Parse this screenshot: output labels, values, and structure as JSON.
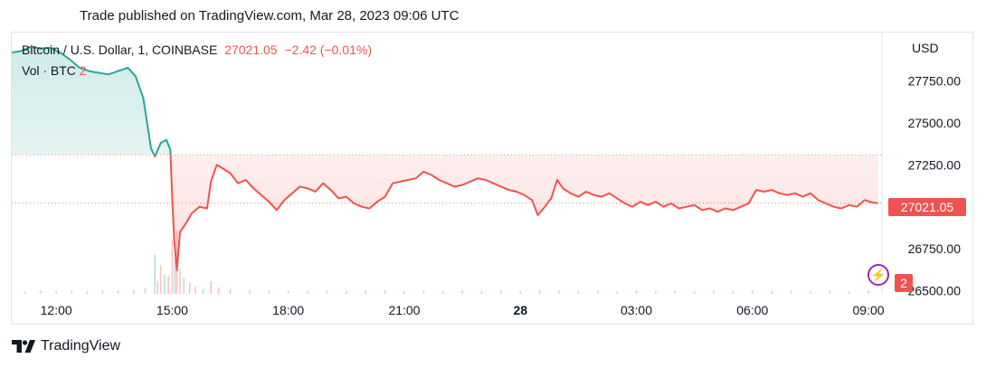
{
  "header": {
    "published": "Trade published on TradingView.com, Mar 28, 2023 09:06 UTC"
  },
  "legend": {
    "symbol": "Bitcoin / U.S. Dollar, 1, COINBASE",
    "last": "27021.05",
    "change": "−2.42 (−0.01%)",
    "volume_label": "Vol · BTC",
    "volume_value": "2"
  },
  "axis": {
    "currency": "USD",
    "price_badge": "27021.05",
    "volume_badge": "2"
  },
  "brand": {
    "name": "TradingView",
    "logo_icon": "tradingview-logo-icon"
  },
  "colors": {
    "up": "#26a69a",
    "down": "#ef5350",
    "marker": "#9c27b0"
  },
  "chart_data": {
    "type": "line",
    "title": "Bitcoin / U.S. Dollar, 1, COINBASE",
    "y_ticks": [
      "27750.00",
      "27500.00",
      "27250.00",
      "27000.00",
      "26750.00",
      "26500.00"
    ],
    "y_tick_values": [
      27750,
      27500,
      27250,
      27000,
      26750,
      26500
    ],
    "ylim": [
      26480,
      28040
    ],
    "x_ticks": [
      {
        "label": "12:00",
        "t": 3,
        "bold": false
      },
      {
        "label": "15:00",
        "t": 6,
        "bold": false
      },
      {
        "label": "18:00",
        "t": 9,
        "bold": false
      },
      {
        "label": "21:00",
        "t": 12,
        "bold": false
      },
      {
        "label": "28",
        "t": 15,
        "bold": true
      },
      {
        "label": "03:00",
        "t": 18,
        "bold": false
      },
      {
        "label": "06:00",
        "t": 21,
        "bold": false
      },
      {
        "label": "09:00",
        "t": 24,
        "bold": false
      }
    ],
    "xlim": [
      1.85,
      24.35
    ],
    "reference_price": 27310,
    "last_price": 27021.05,
    "series": [
      {
        "points": [
          [
            1.85,
            27920
          ],
          [
            2.1,
            27930
          ],
          [
            2.35,
            27955
          ],
          [
            2.6,
            27945
          ],
          [
            2.85,
            27950
          ],
          [
            3.1,
            27920
          ],
          [
            3.35,
            27880
          ],
          [
            3.6,
            27830
          ],
          [
            3.85,
            27810
          ],
          [
            4.1,
            27800
          ],
          [
            4.35,
            27790
          ],
          [
            4.6,
            27810
          ],
          [
            4.85,
            27830
          ],
          [
            5.05,
            27780
          ],
          [
            5.25,
            27650
          ],
          [
            5.35,
            27500
          ],
          [
            5.45,
            27350
          ],
          [
            5.55,
            27300
          ],
          [
            5.7,
            27380
          ],
          [
            5.85,
            27400
          ],
          [
            5.95,
            27340
          ],
          [
            6.0,
            27050
          ],
          [
            6.05,
            26800
          ],
          [
            6.12,
            26620
          ],
          [
            6.2,
            26850
          ],
          [
            6.35,
            26900
          ],
          [
            6.5,
            26960
          ],
          [
            6.7,
            27000
          ],
          [
            6.9,
            26990
          ],
          [
            7.0,
            27150
          ],
          [
            7.15,
            27250
          ],
          [
            7.3,
            27230
          ],
          [
            7.5,
            27200
          ],
          [
            7.7,
            27140
          ],
          [
            7.9,
            27160
          ],
          [
            8.1,
            27110
          ],
          [
            8.3,
            27070
          ],
          [
            8.5,
            27030
          ],
          [
            8.7,
            26980
          ],
          [
            8.9,
            27040
          ],
          [
            9.1,
            27080
          ],
          [
            9.3,
            27120
          ],
          [
            9.5,
            27110
          ],
          [
            9.7,
            27090
          ],
          [
            9.9,
            27140
          ],
          [
            10.1,
            27100
          ],
          [
            10.3,
            27050
          ],
          [
            10.5,
            27060
          ],
          [
            10.7,
            27020
          ],
          [
            10.9,
            27000
          ],
          [
            11.1,
            26990
          ],
          [
            11.3,
            27030
          ],
          [
            11.5,
            27060
          ],
          [
            11.7,
            27140
          ],
          [
            11.9,
            27150
          ],
          [
            12.1,
            27160
          ],
          [
            12.3,
            27170
          ],
          [
            12.5,
            27210
          ],
          [
            12.7,
            27190
          ],
          [
            12.9,
            27160
          ],
          [
            13.1,
            27140
          ],
          [
            13.3,
            27120
          ],
          [
            13.5,
            27130
          ],
          [
            13.7,
            27150
          ],
          [
            13.9,
            27170
          ],
          [
            14.1,
            27160
          ],
          [
            14.3,
            27140
          ],
          [
            14.5,
            27120
          ],
          [
            14.7,
            27100
          ],
          [
            14.9,
            27090
          ],
          [
            15.1,
            27070
          ],
          [
            15.3,
            27040
          ],
          [
            15.45,
            26950
          ],
          [
            15.6,
            26990
          ],
          [
            15.8,
            27050
          ],
          [
            15.95,
            27160
          ],
          [
            16.1,
            27110
          ],
          [
            16.3,
            27080
          ],
          [
            16.5,
            27060
          ],
          [
            16.7,
            27090
          ],
          [
            16.9,
            27070
          ],
          [
            17.1,
            27060
          ],
          [
            17.3,
            27080
          ],
          [
            17.5,
            27050
          ],
          [
            17.7,
            27020
          ],
          [
            17.9,
            27000
          ],
          [
            18.1,
            27030
          ],
          [
            18.3,
            27010
          ],
          [
            18.5,
            27030
          ],
          [
            18.7,
            27000
          ],
          [
            18.9,
            27020
          ],
          [
            19.1,
            26990
          ],
          [
            19.3,
            27000
          ],
          [
            19.5,
            27010
          ],
          [
            19.7,
            26980
          ],
          [
            19.9,
            26990
          ],
          [
            20.1,
            26970
          ],
          [
            20.3,
            26990
          ],
          [
            20.5,
            26980
          ],
          [
            20.7,
            27000
          ],
          [
            20.9,
            27020
          ],
          [
            21.1,
            27100
          ],
          [
            21.3,
            27090
          ],
          [
            21.5,
            27100
          ],
          [
            21.7,
            27080
          ],
          [
            21.9,
            27070
          ],
          [
            22.1,
            27080
          ],
          [
            22.3,
            27060
          ],
          [
            22.5,
            27080
          ],
          [
            22.7,
            27040
          ],
          [
            22.9,
            27020
          ],
          [
            23.1,
            27000
          ],
          [
            23.3,
            26990
          ],
          [
            23.5,
            27010
          ],
          [
            23.7,
            27000
          ],
          [
            23.9,
            27040
          ],
          [
            24.1,
            27025
          ],
          [
            24.25,
            27021.05
          ]
        ]
      }
    ],
    "volume": [
      [
        5.55,
        0.62
      ],
      [
        5.62,
        0.2
      ],
      [
        5.7,
        0.45
      ],
      [
        5.8,
        0.3
      ],
      [
        5.9,
        0.28
      ],
      [
        6.0,
        0.85
      ],
      [
        6.07,
        0.55
      ],
      [
        6.12,
        1.0
      ],
      [
        6.2,
        0.4
      ],
      [
        6.3,
        0.25
      ],
      [
        6.45,
        0.18
      ],
      [
        6.6,
        0.12
      ],
      [
        6.8,
        0.08
      ],
      [
        7.0,
        0.2
      ],
      [
        7.2,
        0.1
      ],
      [
        7.5,
        0.08
      ],
      [
        8.0,
        0.06
      ],
      [
        8.5,
        0.05
      ],
      [
        2.2,
        0.04
      ],
      [
        2.6,
        0.05
      ],
      [
        3.0,
        0.04
      ],
      [
        3.4,
        0.05
      ],
      [
        3.8,
        0.04
      ],
      [
        4.2,
        0.06
      ],
      [
        4.6,
        0.05
      ],
      [
        5.0,
        0.07
      ],
      [
        5.3,
        0.1
      ],
      [
        9.0,
        0.05
      ],
      [
        9.5,
        0.04
      ],
      [
        10.0,
        0.05
      ],
      [
        10.5,
        0.04
      ],
      [
        11.0,
        0.05
      ],
      [
        11.5,
        0.06
      ],
      [
        12.0,
        0.04
      ],
      [
        12.5,
        0.05
      ],
      [
        13.0,
        0.04
      ],
      [
        13.5,
        0.05
      ],
      [
        14.0,
        0.04
      ],
      [
        14.5,
        0.05
      ],
      [
        15.0,
        0.04
      ],
      [
        15.5,
        0.07
      ],
      [
        16.0,
        0.05
      ],
      [
        16.5,
        0.04
      ],
      [
        17.0,
        0.05
      ],
      [
        17.5,
        0.04
      ],
      [
        18.0,
        0.05
      ],
      [
        18.5,
        0.04
      ],
      [
        19.0,
        0.05
      ],
      [
        19.5,
        0.04
      ],
      [
        20.0,
        0.05
      ],
      [
        20.5,
        0.04
      ],
      [
        21.0,
        0.05
      ],
      [
        21.5,
        0.04
      ],
      [
        22.0,
        0.05
      ],
      [
        22.5,
        0.04
      ],
      [
        23.0,
        0.05
      ],
      [
        23.5,
        0.04
      ],
      [
        24.0,
        0.05
      ]
    ]
  }
}
